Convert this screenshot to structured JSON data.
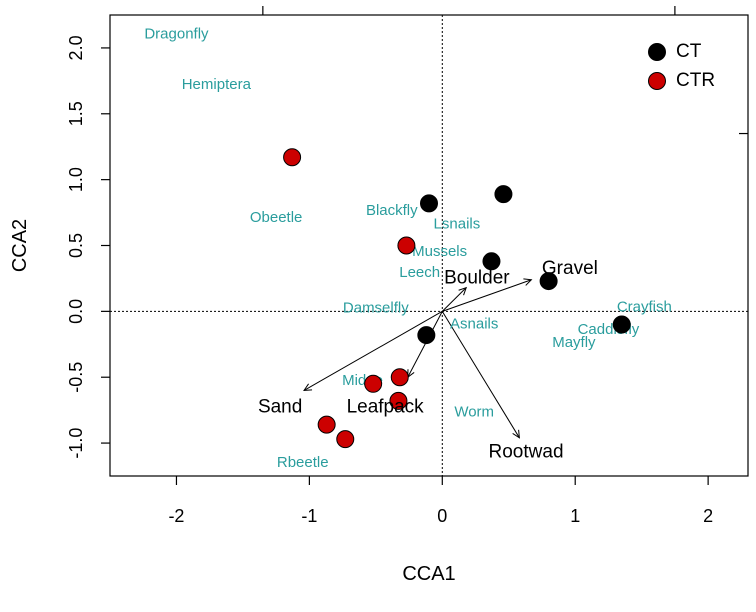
{
  "chart_data": {
    "type": "scatter",
    "xlabel": "CCA1",
    "ylabel": "CCA2",
    "xlim": [
      -2.5,
      2.3
    ],
    "ylim": [
      -1.25,
      2.25
    ],
    "x_ticks": [
      {
        "value": -2,
        "label": "-2"
      },
      {
        "value": -1,
        "label": "-1"
      },
      {
        "value": 0,
        "label": "0"
      },
      {
        "value": 1,
        "label": "1"
      },
      {
        "value": 2,
        "label": "2"
      }
    ],
    "y_ticks": [
      {
        "value": -1.0,
        "label": "-1.0"
      },
      {
        "value": -0.5,
        "label": "-0.5"
      },
      {
        "value": 0.0,
        "label": "0.0"
      },
      {
        "value": 0.5,
        "label": "0.5"
      },
      {
        "value": 1.0,
        "label": "1.0"
      },
      {
        "value": 1.5,
        "label": "1.5"
      },
      {
        "value": 2.0,
        "label": "2.0"
      }
    ],
    "top_ticks": [
      -1.35,
      1.75
    ],
    "right_ticks": [
      1.35
    ],
    "reference_lines": {
      "x": 0,
      "y": 0,
      "style": "dotted"
    },
    "colors": {
      "ct": "#000000",
      "ctr": "#cc0000",
      "species": "#2a9d9d",
      "frame": "#000000"
    },
    "legend": {
      "position": "top-right",
      "entries": [
        {
          "label": "CT",
          "color": "#000000"
        },
        {
          "label": "CTR",
          "color": "#cc0000"
        }
      ]
    },
    "series": [
      {
        "name": "CT",
        "color": "#000000",
        "points": [
          {
            "x": -0.1,
            "y": 0.82
          },
          {
            "x": 0.46,
            "y": 0.89
          },
          {
            "x": 0.37,
            "y": 0.38
          },
          {
            "x": 0.8,
            "y": 0.23
          },
          {
            "x": -0.12,
            "y": -0.18
          },
          {
            "x": 1.35,
            "y": -0.1
          }
        ]
      },
      {
        "name": "CTR",
        "color": "#cc0000",
        "points": [
          {
            "x": -1.13,
            "y": 1.17
          },
          {
            "x": -0.27,
            "y": 0.5
          },
          {
            "x": -0.32,
            "y": -0.5
          },
          {
            "x": -0.52,
            "y": -0.55
          },
          {
            "x": -0.33,
            "y": -0.68
          },
          {
            "x": -0.87,
            "y": -0.86
          },
          {
            "x": -0.73,
            "y": -0.97
          }
        ]
      }
    ],
    "species_labels": [
      {
        "label": "Dragonfly",
        "x": -2.0,
        "y": 2.1
      },
      {
        "label": "Hemiptera",
        "x": -1.7,
        "y": 1.72
      },
      {
        "label": "Obeetle",
        "x": -1.25,
        "y": 0.71
      },
      {
        "label": "Blackfly",
        "x": -0.38,
        "y": 0.76
      },
      {
        "label": "Lsnails",
        "x": 0.11,
        "y": 0.66
      },
      {
        "label": "Mussels",
        "x": -0.02,
        "y": 0.45
      },
      {
        "label": "Leech",
        "x": -0.17,
        "y": 0.29
      },
      {
        "label": "Damselfly",
        "x": -0.5,
        "y": 0.02
      },
      {
        "label": "Asnails",
        "x": 0.24,
        "y": -0.1
      },
      {
        "label": "Crayfish",
        "x": 1.52,
        "y": 0.03
      },
      {
        "label": "Caddisfly",
        "x": 1.25,
        "y": -0.14
      },
      {
        "label": "Mayfly",
        "x": 0.99,
        "y": -0.24
      },
      {
        "label": "Midge",
        "x": -0.6,
        "y": -0.53
      },
      {
        "label": "Worm",
        "x": 0.24,
        "y": -0.77
      },
      {
        "label": "Rbeetle",
        "x": -1.05,
        "y": -1.15
      }
    ],
    "environment_vectors": [
      {
        "label": "Boulder",
        "x": 0.18,
        "y": 0.18,
        "label_x": 0.26,
        "label_y": 0.25
      },
      {
        "label": "Gravel",
        "x": 0.67,
        "y": 0.24,
        "label_x": 0.96,
        "label_y": 0.32
      },
      {
        "label": "Sand",
        "x": -1.04,
        "y": -0.6,
        "label_x": -1.22,
        "label_y": -0.73
      },
      {
        "label": "Leafpack",
        "x": -0.26,
        "y": -0.5,
        "label_x": -0.43,
        "label_y": -0.73
      },
      {
        "label": "Rootwad",
        "x": 0.58,
        "y": -0.96,
        "label_x": 0.63,
        "label_y": -1.07
      }
    ]
  }
}
